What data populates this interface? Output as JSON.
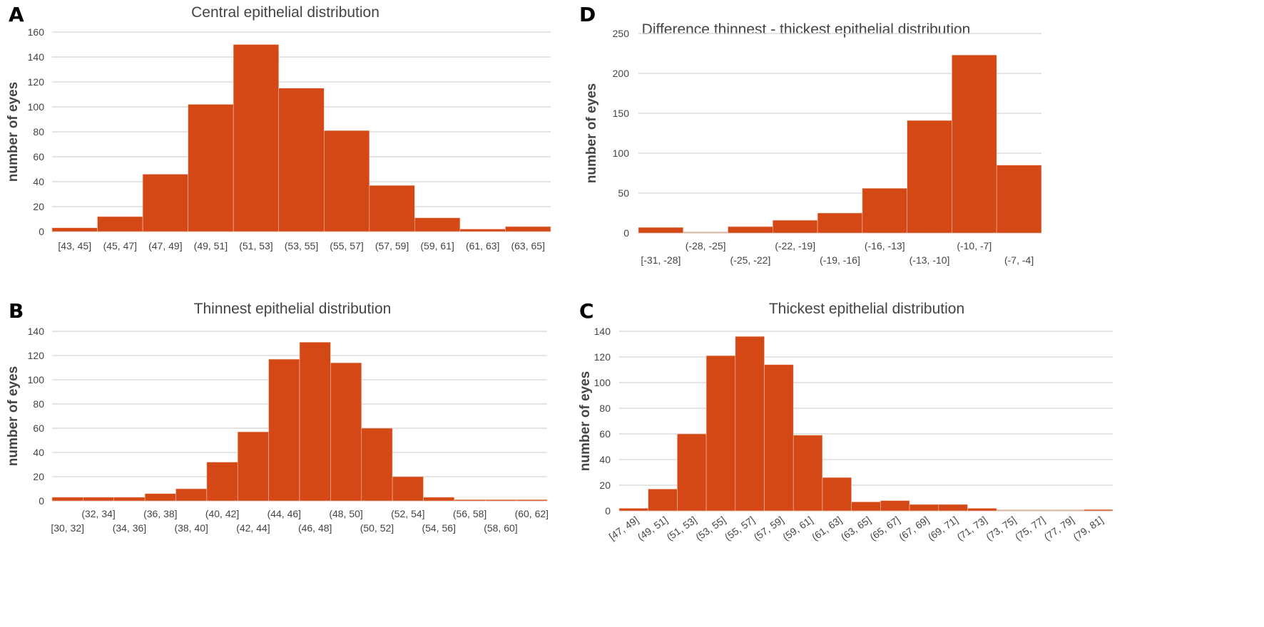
{
  "colors": {
    "bar": "#d44815",
    "grid": "#dcdcdc",
    "text": "#444444"
  },
  "chart_data": [
    {
      "panel": "A",
      "type": "bar",
      "title": "Central epithelial distribution",
      "ylabel": "number of eyes",
      "xlabel": "",
      "ylim": [
        0,
        160
      ],
      "yticks": [
        0,
        20,
        40,
        60,
        80,
        100,
        120,
        140,
        160
      ],
      "grid": true,
      "categories": [
        "[43, 45]",
        "(45, 47]",
        "(47, 49]",
        "(49, 51]",
        "(51, 53]",
        "(53, 55]",
        "(55, 57]",
        "(57, 59]",
        "(59, 61]",
        "(61, 63]",
        "(63, 65]"
      ],
      "values": [
        3,
        12,
        46,
        102,
        150,
        115,
        81,
        37,
        11,
        2,
        4
      ]
    },
    {
      "panel": "D",
      "type": "bar",
      "title": "Difference thinnest - thickest epithelial distribution",
      "ylabel": "number of eyes",
      "xlabel": "",
      "ylim": [
        0,
        250
      ],
      "yticks": [
        0,
        50,
        100,
        150,
        200,
        250
      ],
      "grid": true,
      "categories": [
        "[-31, -28]",
        "(-28, -25]",
        "(-25, -22]",
        "(-22, -19]",
        "(-19, -16]",
        "(-16, -13]",
        "(-13, -10]",
        "(-10, -7]",
        "(-7, -4]"
      ],
      "values": [
        7,
        0,
        8,
        16,
        25,
        56,
        141,
        223,
        85
      ]
    },
    {
      "panel": "B",
      "type": "bar",
      "title": "Thinnest epithelial distribution",
      "ylabel": "number of eyes",
      "xlabel": "",
      "ylim": [
        0,
        140
      ],
      "yticks": [
        0,
        20,
        40,
        60,
        80,
        100,
        120,
        140
      ],
      "grid": true,
      "categories": [
        "[30, 32]",
        "(32, 34]",
        "(34, 36]",
        "(36, 38]",
        "(38, 40]",
        "(40, 42]",
        "(42, 44]",
        "(44, 46]",
        "(46, 48]",
        "(48, 50]",
        "(50, 52]",
        "(52, 54]",
        "(54, 56]",
        "(56, 58]",
        "(58, 60]",
        "(60, 62]"
      ],
      "values": [
        3,
        3,
        3,
        6,
        10,
        32,
        57,
        117,
        131,
        114,
        60,
        20,
        3,
        1,
        1,
        1
      ]
    },
    {
      "panel": "C",
      "type": "bar",
      "title": "Thickest epithelial distribution",
      "ylabel": "number of eyes",
      "xlabel": "",
      "ylim": [
        0,
        140
      ],
      "yticks": [
        0,
        20,
        40,
        60,
        80,
        100,
        120,
        140
      ],
      "grid": true,
      "categories": [
        "[47, 49]",
        "(49, 51]",
        "(51, 53]",
        "(53, 55]",
        "(55, 57]",
        "(57, 59]",
        "(59, 61]",
        "(61, 63]",
        "(63, 65]",
        "(65, 67]",
        "(67, 69]",
        "(69, 71]",
        "(71, 73]",
        "(73, 75]",
        "(75, 77]",
        "(77, 79]",
        "(79, 81]"
      ],
      "values": [
        2,
        17,
        60,
        121,
        136,
        114,
        59,
        26,
        7,
        8,
        5,
        5,
        2,
        0,
        0,
        0,
        1
      ]
    }
  ]
}
